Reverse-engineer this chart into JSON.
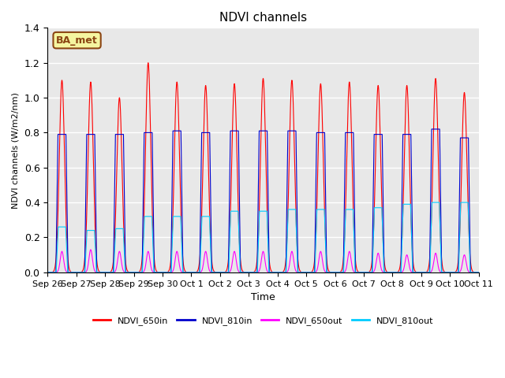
{
  "title": "NDVI channels",
  "xlabel": "Time",
  "ylabel": "NDVI channels (W/m2/nm)",
  "ylim": [
    0,
    1.4
  ],
  "background_color": "#e8e8e8",
  "annotation_text": "BA_met",
  "annotation_bg": "#f5f5a0",
  "annotation_border": "#8B4513",
  "legend_entries": [
    "NDVI_650in",
    "NDVI_810in",
    "NDVI_650out",
    "NDVI_810out"
  ],
  "line_colors": [
    "#ff0000",
    "#0000cc",
    "#ff00ff",
    "#00ccff"
  ],
  "tick_labels": [
    "Sep 26",
    "Sep 27",
    "Sep 28",
    "Sep 29",
    "Sep 30",
    "Oct 1",
    "Oct 2",
    "Oct 3",
    "Oct 4",
    "Oct 5",
    "Oct 6",
    "Oct 7",
    "Oct 8",
    "Oct 9",
    "Oct 10",
    "Oct 11"
  ],
  "num_peaks": 15,
  "peak_650in": [
    1.1,
    1.09,
    1.0,
    1.2,
    1.09,
    1.07,
    1.08,
    1.11,
    1.1,
    1.08,
    1.09,
    1.07,
    1.07,
    1.11,
    1.03
  ],
  "peak_810in": [
    0.79,
    0.79,
    0.79,
    0.8,
    0.81,
    0.8,
    0.81,
    0.81,
    0.81,
    0.8,
    0.8,
    0.79,
    0.79,
    0.82,
    0.77
  ],
  "peak_650out": [
    0.12,
    0.13,
    0.12,
    0.12,
    0.12,
    0.12,
    0.12,
    0.12,
    0.12,
    0.12,
    0.12,
    0.11,
    0.1,
    0.11,
    0.1
  ],
  "peak_810out": [
    0.26,
    0.24,
    0.25,
    0.32,
    0.32,
    0.32,
    0.35,
    0.35,
    0.36,
    0.36,
    0.36,
    0.37,
    0.39,
    0.4,
    0.4
  ],
  "yticks": [
    0.0,
    0.2,
    0.4,
    0.6,
    0.8,
    1.0,
    1.2,
    1.4
  ]
}
